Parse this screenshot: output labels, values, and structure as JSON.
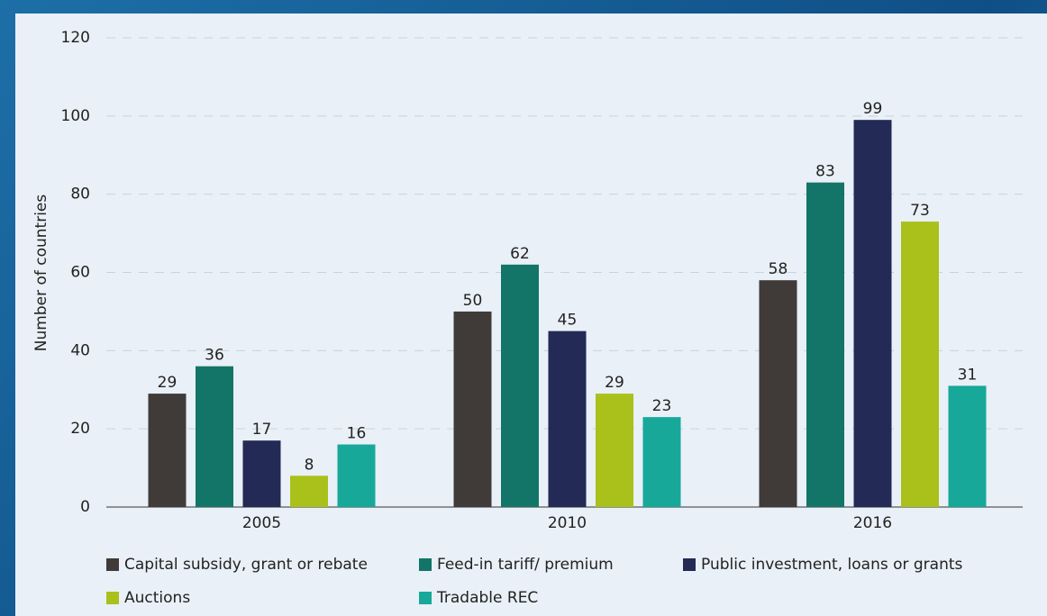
{
  "chart_data": {
    "type": "bar",
    "y_label": "Number of countries",
    "categories": [
      "2005",
      "2010",
      "2016"
    ],
    "series": [
      {
        "name": "Capital subsidy, grant or rebate",
        "color": "#403b38",
        "values": [
          29,
          50,
          58
        ]
      },
      {
        "name": "Feed-in tariff/ premium",
        "color": "#137567",
        "values": [
          36,
          62,
          83
        ]
      },
      {
        "name": "Public investment, loans or grants",
        "color": "#222a55",
        "values": [
          17,
          45,
          99
        ]
      },
      {
        "name": "Auctions",
        "color": "#a9c11a",
        "values": [
          8,
          29,
          73
        ]
      },
      {
        "name": "Tradable REC",
        "color": "#17a89a",
        "values": [
          16,
          23,
          31
        ]
      }
    ],
    "ylim": [
      0,
      120
    ],
    "yticks": [
      0,
      20,
      40,
      60,
      80,
      100,
      120
    ],
    "grid": true
  }
}
